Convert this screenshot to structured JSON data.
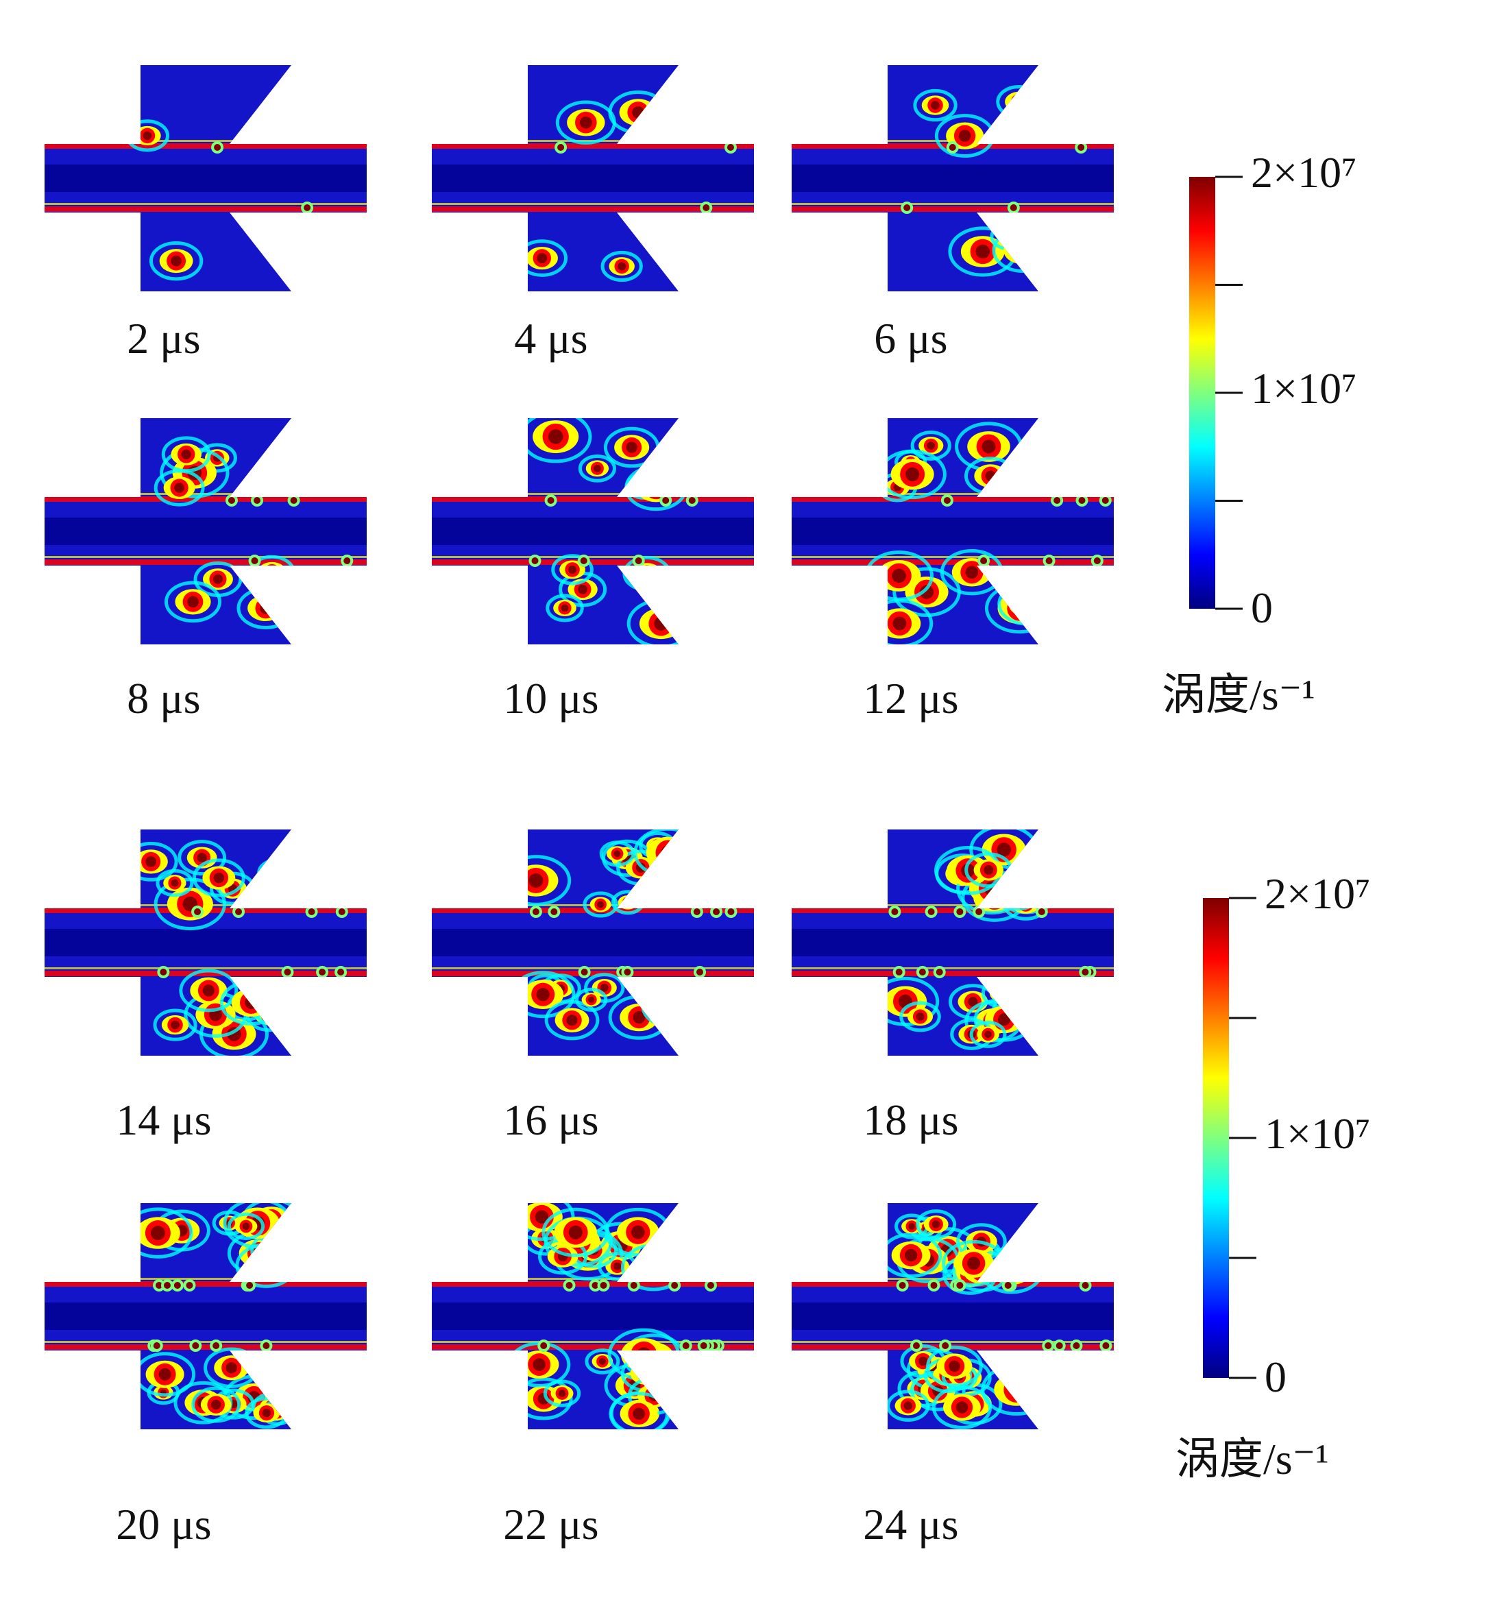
{
  "figure": {
    "panels": [
      {
        "time_label": "2 μs"
      },
      {
        "time_label": "4 μs"
      },
      {
        "time_label": "6 μs"
      },
      {
        "time_label": "8 μs"
      },
      {
        "time_label": "10 μs"
      },
      {
        "time_label": "12 μs"
      },
      {
        "time_label": "14 μs"
      },
      {
        "time_label": "16 μs"
      },
      {
        "time_label": "18 μs"
      },
      {
        "time_label": "20 μs"
      },
      {
        "time_label": "22 μs"
      },
      {
        "time_label": "24 μs"
      }
    ],
    "colorbars": [
      {
        "title": "涡度/s⁻¹",
        "ticks": [
          "2×10⁷",
          "1×10⁷",
          "0"
        ],
        "max_value": 20000000,
        "min_value": 0
      },
      {
        "title": "涡度/s⁻¹",
        "ticks": [
          "2×10⁷",
          "1×10⁷",
          "0"
        ],
        "max_value": 20000000,
        "min_value": 0
      }
    ],
    "colormap": [
      "#00007f",
      "#0000ff",
      "#007fff",
      "#00ffff",
      "#7fff7f",
      "#ffff00",
      "#ff7f00",
      "#ff0000",
      "#7f0000"
    ],
    "field_background_color": "#1414c8"
  }
}
